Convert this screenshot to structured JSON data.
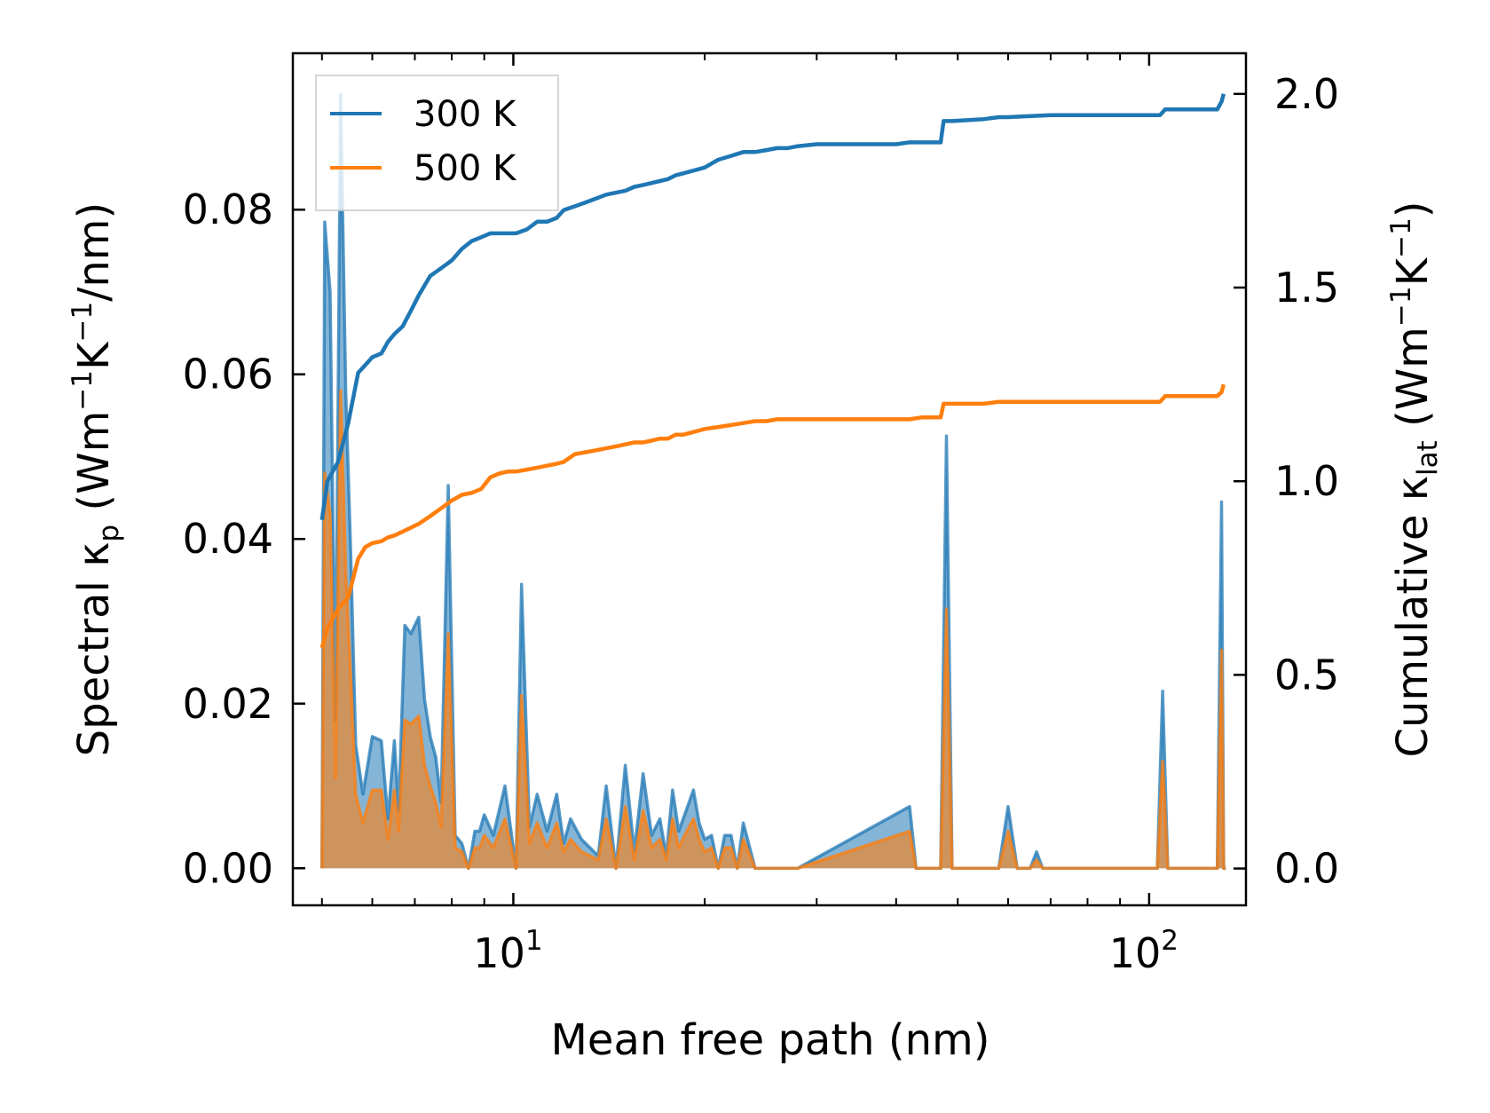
{
  "chart_data": {
    "type": "line",
    "subtype": "dual-axis log-x spectral (filled) + cumulative",
    "xlabel": "Mean free path (nm)",
    "xscale": "log",
    "xlim": [
      4.5,
      142
    ],
    "x_ticks": [
      {
        "value": 10,
        "base": "10",
        "exp": "1"
      },
      {
        "value": 100,
        "base": "10",
        "exp": "2"
      }
    ],
    "left_axis": {
      "label_parts": [
        "Spectral κ",
        "p",
        " (Wm",
        "−1",
        "K",
        "−1",
        "/nm)"
      ],
      "ylim": [
        -0.0045,
        0.099
      ],
      "ticks": [
        "0.00",
        "0.02",
        "0.04",
        "0.06",
        "0.08"
      ]
    },
    "right_axis": {
      "label_parts": [
        "Cumulative κ",
        "lat",
        " (Wm",
        "−1",
        "K",
        "−1",
        ")"
      ],
      "ylim": [
        -0.095,
        2.105
      ],
      "ticks": [
        "0.0",
        "0.5",
        "1.0",
        "1.5",
        "2.0"
      ]
    },
    "legend": {
      "location": "top-left",
      "entries": [
        "300 K",
        "500 K"
      ]
    },
    "series": [
      {
        "name": "300 K",
        "color": "#1f77b4",
        "spectral": {
          "x": [
            5.0,
            5.05,
            5.15,
            5.25,
            5.35,
            5.45,
            5.55,
            5.65,
            5.8,
            6.0,
            6.2,
            6.35,
            6.5,
            6.6,
            6.75,
            6.9,
            7.1,
            7.25,
            7.4,
            7.55,
            7.7,
            7.9,
            8.1,
            8.3,
            8.5,
            8.7,
            8.85,
            9.0,
            9.3,
            9.7,
            10.1,
            10.3,
            10.6,
            10.9,
            11.3,
            11.7,
            12.0,
            12.3,
            12.8,
            13.2,
            13.6,
            14.0,
            14.5,
            15.0,
            15.5,
            16.0,
            16.5,
            17.0,
            17.4,
            17.8,
            18.2,
            18.6,
            19.2,
            19.6,
            20.0,
            20.5,
            21.0,
            21.5,
            22.0,
            22.5,
            23.0,
            24.0,
            25.0,
            26.0,
            27.0,
            28.0,
            42.0,
            43.0,
            44.0,
            47.0,
            48.0,
            49.0,
            50.0,
            58.0,
            60.0,
            62.0,
            65.0,
            66.5,
            68.0,
            103.0,
            105.0,
            107.0,
            109.0,
            128.0,
            130.0,
            131.0,
            132.0
          ],
          "y": [
            0.0,
            0.0785,
            0.07,
            0.018,
            0.094,
            0.058,
            0.038,
            0.015,
            0.009,
            0.016,
            0.0155,
            0.006,
            0.0155,
            0.007,
            0.0295,
            0.0285,
            0.0305,
            0.0205,
            0.016,
            0.0135,
            0.008,
            0.0465,
            0.004,
            0.003,
            0.0,
            0.0045,
            0.0045,
            0.0065,
            0.004,
            0.01,
            0.0,
            0.0345,
            0.005,
            0.009,
            0.0045,
            0.009,
            0.003,
            0.006,
            0.0035,
            0.0025,
            0.0015,
            0.01,
            0.0,
            0.0125,
            0.002,
            0.0115,
            0.004,
            0.006,
            0.0015,
            0.0095,
            0.0045,
            0.0065,
            0.0095,
            0.0055,
            0.0035,
            0.004,
            0.0,
            0.004,
            0.004,
            0.0,
            0.0055,
            0.0,
            0.0,
            0.0,
            0.0,
            0.0,
            0.0075,
            0.0,
            0.0,
            0.0,
            0.0525,
            0.0,
            0.0,
            0.0,
            0.0075,
            0.0,
            0.0,
            0.002,
            0.0,
            0.0,
            0.0215,
            0.0,
            0.0,
            0.0,
            0.0445,
            0.0,
            0.0
          ]
        },
        "cumulative": {
          "x": [
            5.0,
            5.1,
            5.3,
            5.5,
            5.7,
            5.85,
            6.0,
            6.2,
            6.35,
            6.5,
            6.7,
            6.9,
            7.1,
            7.4,
            7.7,
            8.0,
            8.3,
            8.6,
            8.9,
            9.2,
            9.5,
            9.8,
            10.1,
            10.5,
            10.9,
            11.3,
            11.7,
            12.0,
            12.5,
            13.0,
            13.5,
            14.0,
            14.5,
            15.0,
            15.5,
            16.0,
            16.5,
            17.0,
            17.5,
            18.0,
            18.5,
            19.0,
            19.5,
            20.0,
            21.0,
            22.0,
            23.0,
            24.0,
            25.0,
            26.0,
            27.0,
            28.0,
            30.0,
            35.0,
            40.0,
            42.0,
            44.0,
            46.0,
            47.0,
            47.5,
            49.0,
            55.0,
            58.0,
            60.0,
            70.0,
            80.0,
            90.0,
            100.0,
            104.0,
            106.0,
            110.0,
            120.0,
            128.0,
            130.0,
            131.0
          ],
          "y": [
            0.9,
            1.0,
            1.05,
            1.15,
            1.28,
            1.3,
            1.32,
            1.33,
            1.36,
            1.38,
            1.4,
            1.44,
            1.48,
            1.53,
            1.55,
            1.57,
            1.6,
            1.62,
            1.63,
            1.64,
            1.64,
            1.64,
            1.64,
            1.65,
            1.67,
            1.67,
            1.68,
            1.7,
            1.71,
            1.72,
            1.73,
            1.74,
            1.745,
            1.75,
            1.76,
            1.765,
            1.77,
            1.775,
            1.78,
            1.79,
            1.795,
            1.8,
            1.805,
            1.81,
            1.83,
            1.84,
            1.85,
            1.85,
            1.855,
            1.86,
            1.86,
            1.865,
            1.87,
            1.87,
            1.87,
            1.875,
            1.875,
            1.875,
            1.875,
            1.93,
            1.93,
            1.935,
            1.94,
            1.94,
            1.945,
            1.945,
            1.945,
            1.945,
            1.945,
            1.96,
            1.96,
            1.96,
            1.96,
            1.98,
            2.0
          ]
        }
      },
      {
        "name": "500 K",
        "color": "#ff7f0e",
        "spectral": {
          "x": [
            5.0,
            5.05,
            5.15,
            5.25,
            5.35,
            5.45,
            5.55,
            5.65,
            5.8,
            6.0,
            6.2,
            6.35,
            6.5,
            6.6,
            6.75,
            6.9,
            7.1,
            7.25,
            7.4,
            7.55,
            7.7,
            7.9,
            8.1,
            8.3,
            8.5,
            8.7,
            8.85,
            9.0,
            9.3,
            9.7,
            10.1,
            10.3,
            10.6,
            10.9,
            11.3,
            11.7,
            12.0,
            12.3,
            12.8,
            13.2,
            13.6,
            14.0,
            14.5,
            15.0,
            15.5,
            16.0,
            16.5,
            17.0,
            17.4,
            17.8,
            18.2,
            18.6,
            19.2,
            19.6,
            20.0,
            20.5,
            21.0,
            21.5,
            22.0,
            22.5,
            23.0,
            24.0,
            25.0,
            26.0,
            27.0,
            28.0,
            42.0,
            43.0,
            44.0,
            47.0,
            48.0,
            49.0,
            50.0,
            58.0,
            60.0,
            62.0,
            65.0,
            66.5,
            68.0,
            103.0,
            105.0,
            107.0,
            109.0,
            128.0,
            130.0,
            131.0,
            132.0
          ],
          "y": [
            0.0,
            0.048,
            0.043,
            0.011,
            0.058,
            0.036,
            0.023,
            0.009,
            0.0055,
            0.0095,
            0.0095,
            0.0035,
            0.0095,
            0.0045,
            0.018,
            0.0175,
            0.0185,
            0.0125,
            0.01,
            0.008,
            0.005,
            0.0285,
            0.0025,
            0.002,
            0.0,
            0.0025,
            0.0025,
            0.004,
            0.0025,
            0.006,
            0.0,
            0.021,
            0.003,
            0.0055,
            0.0025,
            0.0055,
            0.002,
            0.0035,
            0.002,
            0.0015,
            0.001,
            0.006,
            0.0,
            0.0075,
            0.001,
            0.007,
            0.0025,
            0.0035,
            0.001,
            0.006,
            0.0025,
            0.004,
            0.006,
            0.0035,
            0.002,
            0.0025,
            0.0,
            0.0025,
            0.0025,
            0.0,
            0.0035,
            0.0,
            0.0,
            0.0,
            0.0,
            0.0,
            0.0045,
            0.0,
            0.0,
            0.0,
            0.0315,
            0.0,
            0.0,
            0.0,
            0.0045,
            0.0,
            0.0,
            0.001,
            0.0,
            0.0,
            0.013,
            0.0,
            0.0,
            0.0,
            0.0265,
            0.0,
            0.0
          ]
        },
        "cumulative": {
          "x": [
            5.0,
            5.1,
            5.3,
            5.5,
            5.7,
            5.85,
            6.0,
            6.2,
            6.35,
            6.5,
            6.7,
            6.9,
            7.1,
            7.4,
            7.7,
            8.0,
            8.3,
            8.6,
            8.9,
            9.2,
            9.5,
            9.8,
            10.1,
            10.5,
            10.9,
            11.3,
            11.7,
            12.0,
            12.5,
            13.0,
            13.5,
            14.0,
            14.5,
            15.0,
            15.5,
            16.0,
            16.5,
            17.0,
            17.5,
            18.0,
            18.5,
            19.0,
            19.5,
            20.0,
            21.0,
            22.0,
            23.0,
            24.0,
            25.0,
            26.0,
            27.0,
            28.0,
            30.0,
            35.0,
            40.0,
            42.0,
            44.0,
            46.0,
            47.0,
            47.5,
            49.0,
            55.0,
            58.0,
            60.0,
            70.0,
            80.0,
            90.0,
            100.0,
            104.0,
            106.0,
            110.0,
            120.0,
            128.0,
            130.0,
            131.0
          ],
          "y": [
            0.57,
            0.62,
            0.67,
            0.7,
            0.8,
            0.83,
            0.84,
            0.845,
            0.855,
            0.86,
            0.87,
            0.88,
            0.89,
            0.91,
            0.93,
            0.95,
            0.965,
            0.97,
            0.98,
            1.01,
            1.02,
            1.025,
            1.025,
            1.03,
            1.035,
            1.04,
            1.045,
            1.05,
            1.07,
            1.075,
            1.08,
            1.085,
            1.09,
            1.095,
            1.1,
            1.1,
            1.105,
            1.11,
            1.11,
            1.12,
            1.12,
            1.125,
            1.13,
            1.135,
            1.14,
            1.145,
            1.15,
            1.155,
            1.155,
            1.16,
            1.16,
            1.16,
            1.16,
            1.16,
            1.16,
            1.16,
            1.165,
            1.165,
            1.165,
            1.2,
            1.2,
            1.2,
            1.205,
            1.205,
            1.205,
            1.205,
            1.205,
            1.205,
            1.205,
            1.22,
            1.22,
            1.22,
            1.22,
            1.23,
            1.25
          ]
        }
      }
    ]
  }
}
